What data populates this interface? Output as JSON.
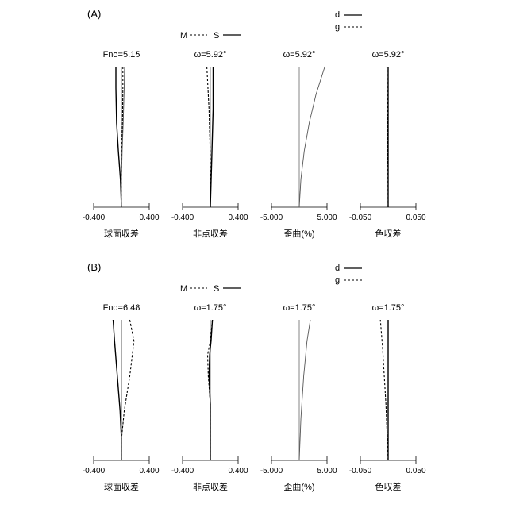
{
  "panels": [
    {
      "label": "(A)",
      "legend_ms": {
        "m": "M",
        "s": "S"
      },
      "legend_dg": {
        "d": "d",
        "g": "g"
      },
      "chart_data": [
        {
          "type": "line",
          "title": "Fno=5.15",
          "xlabel": "球面収差",
          "xlim": [
            -0.4,
            0.4
          ],
          "tick_labels": [
            "-0.400",
            "0.400"
          ],
          "ylim": [
            0,
            1
          ],
          "series": [
            {
              "name": "d",
              "x": [
                -0.08,
                -0.08,
                -0.07,
                -0.045,
                -0.015,
                0.0
              ],
              "y": [
                1.0,
                0.85,
                0.6,
                0.4,
                0.2,
                0.0
              ]
            },
            {
              "name": "g",
              "x": [
                0.02,
                0.02,
                0.015,
                0.005,
                0.0,
                0.0
              ],
              "y": [
                1.0,
                0.85,
                0.6,
                0.4,
                0.2,
                0.0
              ]
            },
            {
              "name": "",
              "x": [
                0.045,
                0.04,
                0.025,
                0.01,
                0.0,
                0.0
              ],
              "y": [
                1.0,
                0.85,
                0.6,
                0.4,
                0.2,
                0.0
              ]
            }
          ]
        },
        {
          "type": "line",
          "title": "ω=5.92°",
          "xlabel": "非点収差",
          "xlim": [
            -0.4,
            0.4
          ],
          "tick_labels": [
            "-0.400",
            "0.400"
          ],
          "ylim": [
            0,
            1
          ],
          "series": [
            {
              "name": "S",
              "x": [
                0.04,
                0.04,
                0.02,
                0.0
              ],
              "y": [
                1.0,
                0.7,
                0.35,
                0.0
              ]
            },
            {
              "name": "M",
              "x": [
                -0.05,
                -0.02,
                0.0,
                0.0
              ],
              "y": [
                1.0,
                0.7,
                0.35,
                0.0
              ]
            }
          ]
        },
        {
          "type": "line",
          "title": "ω=5.92°",
          "xlabel": "歪曲(%)",
          "xlim": [
            -5.0,
            5.0
          ],
          "tick_labels": [
            "-5.000",
            "5.000"
          ],
          "ylim": [
            0,
            1
          ],
          "series": [
            {
              "name": "",
              "x": [
                0.0,
                0.3,
                0.9,
                1.8,
                3.0,
                4.6
              ],
              "y": [
                0.0,
                0.2,
                0.4,
                0.6,
                0.8,
                1.0
              ]
            }
          ]
        },
        {
          "type": "line",
          "title": "ω=5.92°",
          "xlabel": "色収差",
          "xlim": [
            -0.05,
            0.05
          ],
          "tick_labels": [
            "-0.050",
            "0.050"
          ],
          "ylim": [
            0,
            1
          ],
          "series": [
            {
              "name": "d",
              "x": [
                0.0,
                0.0
              ],
              "y": [
                0.0,
                1.0
              ]
            },
            {
              "name": "g",
              "x": [
                0.0,
                -0.0012,
                -0.0022
              ],
              "y": [
                0.0,
                0.6,
                1.0
              ]
            }
          ]
        }
      ]
    },
    {
      "label": "(B)",
      "legend_ms": {
        "m": "M",
        "s": "S"
      },
      "legend_dg": {
        "d": "d",
        "g": "g"
      },
      "chart_data": [
        {
          "type": "line",
          "title": "Fno=6.48",
          "xlabel": "球面収差",
          "xlim": [
            -0.4,
            0.4
          ],
          "tick_labels": [
            "-0.400",
            "0.400"
          ],
          "ylim": [
            0,
            1
          ],
          "series": [
            {
              "name": "d",
              "x": [
                -0.12,
                -0.1,
                -0.06,
                -0.02,
                0.0,
                0.0
              ],
              "y": [
                1.0,
                0.85,
                0.6,
                0.35,
                0.15,
                0.0
              ]
            },
            {
              "name": "g",
              "x": [
                0.12,
                0.18,
                0.12,
                0.04,
                0.0,
                0.0
              ],
              "y": [
                1.0,
                0.85,
                0.6,
                0.35,
                0.15,
                0.0
              ]
            },
            {
              "name": "",
              "x": [
                0.0,
                0.0
              ],
              "y": [
                0.0,
                1.0
              ]
            }
          ]
        },
        {
          "type": "line",
          "title": "ω=1.75°",
          "xlabel": "非点収差",
          "xlim": [
            -0.4,
            0.4
          ],
          "tick_labels": [
            "-0.400",
            "0.400"
          ],
          "ylim": [
            0,
            1
          ],
          "series": [
            {
              "name": "S",
              "x": [
                0.03,
                0.01,
                -0.01,
                -0.02,
                0.0,
                0.0
              ],
              "y": [
                1.0,
                0.85,
                0.75,
                0.6,
                0.4,
                0.0
              ]
            },
            {
              "name": "M",
              "x": [
                0.03,
                0.0,
                -0.04,
                -0.03,
                0.0,
                0.0
              ],
              "y": [
                1.0,
                0.85,
                0.75,
                0.6,
                0.4,
                0.0
              ]
            }
          ]
        },
        {
          "type": "line",
          "title": "ω=1.75°",
          "xlabel": "歪曲(%)",
          "xlim": [
            -5.0,
            5.0
          ],
          "tick_labels": [
            "-5.000",
            "5.000"
          ],
          "ylim": [
            0,
            1
          ],
          "series": [
            {
              "name": "",
              "x": [
                0.0,
                0.3,
                0.8,
                1.4,
                2.0
              ],
              "y": [
                0.0,
                0.3,
                0.6,
                0.85,
                1.0
              ]
            }
          ]
        },
        {
          "type": "line",
          "title": "ω=1.75°",
          "xlabel": "色収差",
          "xlim": [
            -0.05,
            0.05
          ],
          "tick_labels": [
            "-0.050",
            "0.050"
          ],
          "ylim": [
            0,
            1
          ],
          "series": [
            {
              "name": "d",
              "x": [
                0.0,
                0.0
              ],
              "y": [
                0.0,
                1.0
              ]
            },
            {
              "name": "g",
              "x": [
                0.0,
                -0.004,
                -0.01,
                -0.014
              ],
              "y": [
                0.0,
                0.4,
                0.8,
                1.0
              ]
            }
          ]
        }
      ]
    }
  ]
}
